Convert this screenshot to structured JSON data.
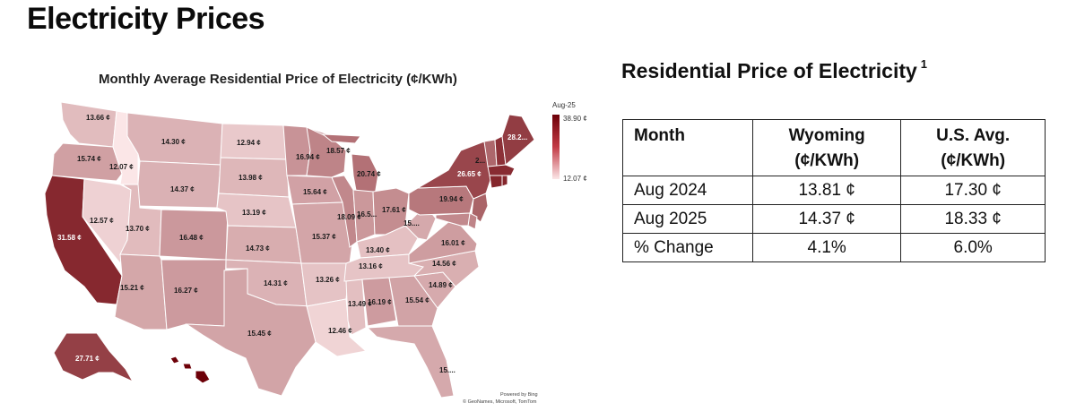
{
  "page": {
    "title": "Electricity Prices"
  },
  "map": {
    "title": "Monthly Average Residential Price of Electricity (¢/KWh)",
    "legend": {
      "period": "Aug-25",
      "max_label": "38.90 ¢",
      "min_label": "12.07 ¢",
      "max_value": 38.9,
      "min_value": 12.07,
      "color_low": "#fbe6e7",
      "color_high": "#6d0008"
    },
    "credit_line1": "Powered by Bing",
    "credit_line2": "© GeoNames, Microsoft, TomTom",
    "states": [
      {
        "id": "WA",
        "value": 13.66,
        "label": "13.66 ¢"
      },
      {
        "id": "OR",
        "value": 15.74,
        "label": "15.74 ¢"
      },
      {
        "id": "CA",
        "value": 31.58,
        "label": "31.58 ¢"
      },
      {
        "id": "ID",
        "value": 12.07,
        "label": "12.07 ¢"
      },
      {
        "id": "NV",
        "value": 12.57,
        "label": "12.57 ¢"
      },
      {
        "id": "MT",
        "value": 14.3,
        "label": "14.30 ¢"
      },
      {
        "id": "WY",
        "value": 14.37,
        "label": "14.37 ¢"
      },
      {
        "id": "UT",
        "value": 13.7,
        "label": "13.70 ¢"
      },
      {
        "id": "AZ",
        "value": 15.21,
        "label": "15.21 ¢"
      },
      {
        "id": "CO",
        "value": 16.48,
        "label": "16.48 ¢"
      },
      {
        "id": "NM",
        "value": 16.27,
        "label": "16.27 ¢"
      },
      {
        "id": "ND",
        "value": 12.94,
        "label": "12.94 ¢"
      },
      {
        "id": "SD",
        "value": 13.98,
        "label": "13.98 ¢"
      },
      {
        "id": "NE",
        "value": 13.19,
        "label": "13.19 ¢"
      },
      {
        "id": "KS",
        "value": 14.73,
        "label": "14.73 ¢"
      },
      {
        "id": "OK",
        "value": 14.31,
        "label": "14.31 ¢"
      },
      {
        "id": "TX",
        "value": 15.45,
        "label": "15.45 ¢"
      },
      {
        "id": "MN",
        "value": 16.94,
        "label": "16.94 ¢"
      },
      {
        "id": "IA",
        "value": 15.64,
        "label": "15.64 ¢"
      },
      {
        "id": "MO",
        "value": 15.37,
        "label": "15.37 ¢"
      },
      {
        "id": "AR",
        "value": 13.26,
        "label": "13.26 ¢"
      },
      {
        "id": "LA",
        "value": 12.46,
        "label": "12.46 ¢"
      },
      {
        "id": "WI",
        "value": 18.57,
        "label": "18.57 ¢"
      },
      {
        "id": "IL",
        "value": 18.09,
        "label": "18.09 ¢"
      },
      {
        "id": "MI",
        "value": 20.74,
        "label": "20.74 ¢"
      },
      {
        "id": "IN",
        "value": 16.5,
        "label": "16.5..."
      },
      {
        "id": "OH",
        "value": 17.61,
        "label": "17.61 ¢"
      },
      {
        "id": "KY",
        "value": 13.4,
        "label": "13.40 ¢"
      },
      {
        "id": "TN",
        "value": 13.16,
        "label": "13.16 ¢"
      },
      {
        "id": "MS",
        "value": 13.49,
        "label": "13.49 ¢"
      },
      {
        "id": "AL",
        "value": 16.19,
        "label": "16.19 ¢"
      },
      {
        "id": "GA",
        "value": 15.54,
        "label": "15.54 ¢"
      },
      {
        "id": "FL",
        "value": 15.0,
        "label": "15...."
      },
      {
        "id": "SC",
        "value": 14.89,
        "label": "14.89 ¢"
      },
      {
        "id": "NC",
        "value": 14.56,
        "label": "14.56 ¢"
      },
      {
        "id": "VA",
        "value": 16.01,
        "label": "16.01 ¢"
      },
      {
        "id": "WV",
        "value": 15.0,
        "label": "15...."
      },
      {
        "id": "PA",
        "value": 19.94,
        "label": "19.94 ¢"
      },
      {
        "id": "NY",
        "value": 26.65,
        "label": "26.65 ¢"
      },
      {
        "id": "VT",
        "value": 22.0,
        "label": "2..."
      },
      {
        "id": "NH",
        "value": 30.0,
        "label": ""
      },
      {
        "id": "ME",
        "value": 28.2,
        "label": "28.2..."
      },
      {
        "id": "MA",
        "value": 31.0,
        "label": ""
      },
      {
        "id": "CT",
        "value": 32.0,
        "label": ""
      },
      {
        "id": "RI",
        "value": 32.0,
        "label": ""
      },
      {
        "id": "NJ",
        "value": 22.5,
        "label": ""
      },
      {
        "id": "DE",
        "value": 18.5,
        "label": ""
      },
      {
        "id": "MD",
        "value": 18.0,
        "label": ""
      },
      {
        "id": "AK",
        "value": 27.71,
        "label": "27.71 ¢"
      },
      {
        "id": "HI",
        "value": 38.9,
        "label": ""
      }
    ]
  },
  "table": {
    "title": "Residential Price of Electricity",
    "footnote_marker": "1",
    "headers": {
      "month": "Month",
      "wyoming_line1": "Wyoming",
      "wyoming_line2": "(¢/KWh)",
      "us_line1": "U.S. Avg.",
      "us_line2": "(¢/KWh)"
    },
    "rows": [
      {
        "month": "Aug 2024",
        "wyoming": "13.81 ¢",
        "us": "17.30 ¢"
      },
      {
        "month": "Aug 2025",
        "wyoming": "14.37 ¢",
        "us": "18.33 ¢"
      },
      {
        "month": "% Change",
        "wyoming": "4.1%",
        "us": "6.0%"
      }
    ]
  }
}
